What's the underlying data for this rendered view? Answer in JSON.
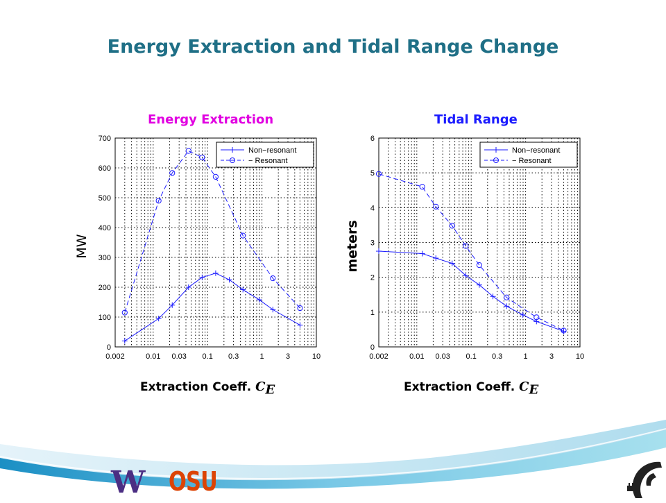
{
  "slide": {
    "title": "Energy Extraction and Tidal Range Change"
  },
  "logos": {
    "uw": "W",
    "osu": "OSU",
    "corner_icon": "wave-plug-icon"
  },
  "colors": {
    "title": "#1f6f86",
    "energy_title": "#e100e1",
    "tidal_title": "#1a1aff",
    "series": "#1a1aff"
  },
  "chart_data": [
    {
      "type": "line",
      "title": "Energy Extraction",
      "xlabel": "Extraction Coeff.",
      "xlabel_symbol": "C",
      "xlabel_subscript": "E",
      "ylabel": "MW",
      "xscale": "log",
      "xlim": [
        0.002,
        10
      ],
      "ylim": [
        0,
        700
      ],
      "x_ticks": [
        0.002,
        0.01,
        0.03,
        0.1,
        0.3,
        1,
        3,
        10
      ],
      "x_tick_labels": [
        "0.002",
        "0.01",
        "0.03",
        "0.1",
        "0.3",
        "1",
        "3",
        "10"
      ],
      "y_ticks": [
        0,
        100,
        200,
        300,
        400,
        500,
        600,
        700
      ],
      "y_tick_labels": [
        "0",
        "100",
        "200",
        "300",
        "400",
        "500",
        "600",
        "700"
      ],
      "grid": true,
      "legend": "top-right",
      "series": [
        {
          "name": "Non−resonant",
          "legend_label": "Non−resonant",
          "marker": "+",
          "line": "solid",
          "x": [
            0.003,
            0.0126,
            0.0224,
            0.0447,
            0.0794,
            0.141,
            0.251,
            0.447,
            0.891,
            1.585,
            5.012
          ],
          "y": [
            20,
            95,
            140,
            200,
            233,
            247,
            225,
            192,
            158,
            125,
            73
          ]
        },
        {
          "name": "Resonant",
          "legend_label": "− Resonant",
          "marker": "o",
          "line": "dashed",
          "x": [
            0.003,
            0.0126,
            0.0224,
            0.0447,
            0.0794,
            0.141,
            0.447,
            1.585,
            5.012
          ],
          "y": [
            115,
            490,
            583,
            657,
            635,
            570,
            373,
            230,
            130
          ]
        }
      ]
    },
    {
      "type": "line",
      "title": "Tidal Range",
      "xlabel": "Extraction Coeff.",
      "xlabel_symbol": "C",
      "xlabel_subscript": "E",
      "ylabel": "meters",
      "xscale": "log",
      "xlim": [
        0.002,
        10
      ],
      "ylim": [
        0,
        6
      ],
      "x_ticks": [
        0.002,
        0.01,
        0.03,
        0.1,
        0.3,
        1,
        3,
        10
      ],
      "x_tick_labels": [
        "0.002",
        "0.01",
        "0.03",
        "0.1",
        "0.3",
        "1",
        "3",
        "10"
      ],
      "y_ticks": [
        0,
        1,
        2,
        3,
        4,
        5,
        6
      ],
      "y_tick_labels": [
        "0",
        "1",
        "2",
        "3",
        "4",
        "5",
        "6"
      ],
      "grid": true,
      "legend": "top-right",
      "series": [
        {
          "name": "Non−resonant",
          "legend_label": "Non−resonant",
          "marker": "+",
          "line": "solid",
          "x": [
            0.002,
            0.0126,
            0.0224,
            0.0447,
            0.0794,
            0.141,
            0.251,
            0.447,
            0.891,
            1.585,
            5.012
          ],
          "y": [
            2.75,
            2.68,
            2.55,
            2.4,
            2.05,
            1.78,
            1.45,
            1.17,
            0.92,
            0.73,
            0.45
          ]
        },
        {
          "name": "Resonant",
          "legend_label": "− Resonant",
          "marker": "o",
          "line": "dashed",
          "x": [
            0.002,
            0.0126,
            0.0224,
            0.0447,
            0.0794,
            0.141,
            0.447,
            1.585,
            5.012
          ],
          "y": [
            4.97,
            4.6,
            4.03,
            3.48,
            2.9,
            2.35,
            1.42,
            0.85,
            0.47
          ]
        }
      ]
    }
  ]
}
